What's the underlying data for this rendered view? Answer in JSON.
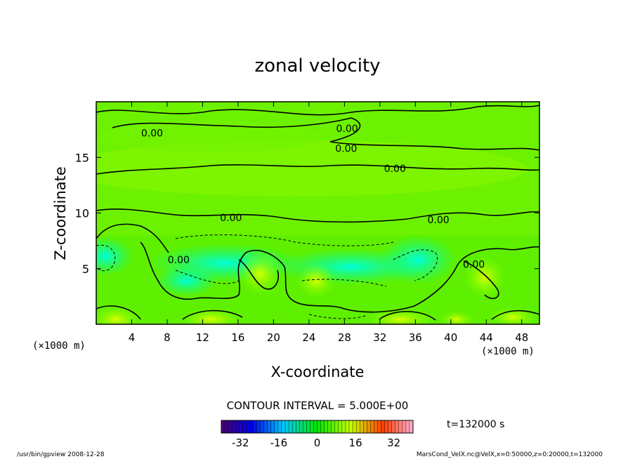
{
  "chart_data": {
    "type": "heatmap",
    "title": "zonal velocity",
    "xlabel": "X-coordinate",
    "ylabel": "Z-coordinate",
    "x_unit": "(×1000 m)",
    "xlim": [
      0,
      50
    ],
    "ylim": [
      0,
      20
    ],
    "x_ticks": [
      "4",
      "8",
      "12",
      "16",
      "20",
      "24",
      "28",
      "32",
      "36",
      "40",
      "44",
      "48"
    ],
    "y_ticks": [
      "5",
      "10",
      "15"
    ],
    "x_tick_values": [
      4,
      8,
      12,
      16,
      20,
      24,
      28,
      32,
      36,
      40,
      44,
      48
    ],
    "y_tick_values": [
      5,
      10,
      15
    ],
    "contour_interval_text": "CONTOUR INTERVAL = 5.000E+00",
    "contour_labels": [
      {
        "text": "0.00",
        "x": 6.3,
        "z": 17.2
      },
      {
        "text": "0.00",
        "x": 28.3,
        "z": 17.6
      },
      {
        "text": "0.00",
        "x": 28.2,
        "z": 15.8
      },
      {
        "text": "0.00",
        "x": 33.7,
        "z": 14.0
      },
      {
        "text": "0.00",
        "x": 15.2,
        "z": 9.6
      },
      {
        "text": "0.00",
        "x": 38.6,
        "z": 9.4
      },
      {
        "text": "0.00",
        "x": 9.3,
        "z": 5.8
      },
      {
        "text": "0.00",
        "x": 42.6,
        "z": 5.4
      }
    ],
    "colorbar": {
      "range": [
        -40,
        40
      ],
      "tick_labels": [
        "-32",
        "-16",
        "0",
        "16",
        "32"
      ],
      "tick_values": [
        -32,
        -16,
        0,
        16,
        32
      ]
    },
    "time_label": "t=132000 s",
    "grid": false
  },
  "footer": {
    "left": "/usr/bin/gpview  2008-12-28",
    "right": "MarsCond_VelX.nc@VelX,x=0:50000,z=0:20000,t=132000"
  },
  "colors": {
    "background": "#00ff00",
    "positive": "#f0ff00",
    "negative": "#00ffc8"
  }
}
